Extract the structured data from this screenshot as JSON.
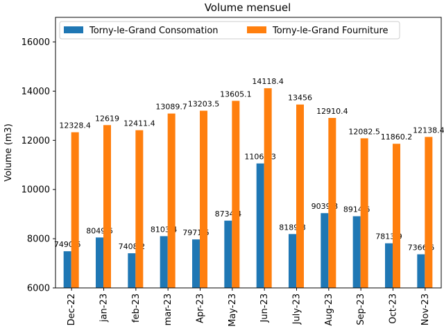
{
  "chart_data": {
    "type": "bar",
    "title": "Volume mensuel",
    "xlabel": "",
    "ylabel": "Volume (m3)",
    "ylim": [
      6000,
      17000
    ],
    "yticks": [
      6000,
      8000,
      10000,
      12000,
      14000,
      16000
    ],
    "grid": false,
    "legend_position": "top-left",
    "categories": [
      "Dec-22",
      "jan-23",
      "feb-23",
      "mar-23",
      "Apr-23",
      "May-23",
      "Jun-23",
      "July-23",
      "Aug-23",
      "Sep-23",
      "Oct-23",
      "Nov-23"
    ],
    "series": [
      {
        "name": "Torny-le-Grand Consomation",
        "color": "#1f77b4",
        "values": [
          7490.6,
          8049.6,
          7408.2,
          8103.4,
          7971.5,
          8734.4,
          11060.3,
          8189.8,
          9039.8,
          8914.6,
          7813.9,
          7366.6
        ]
      },
      {
        "name": "Torny-le-Grand Fourniture",
        "color": "#ff7f0e",
        "values": [
          12328.4,
          12619,
          12411.4,
          13089.7,
          13203.5,
          13605.1,
          14118.4,
          13456,
          12910.4,
          12082.5,
          11860.2,
          12138.4
        ]
      }
    ]
  }
}
